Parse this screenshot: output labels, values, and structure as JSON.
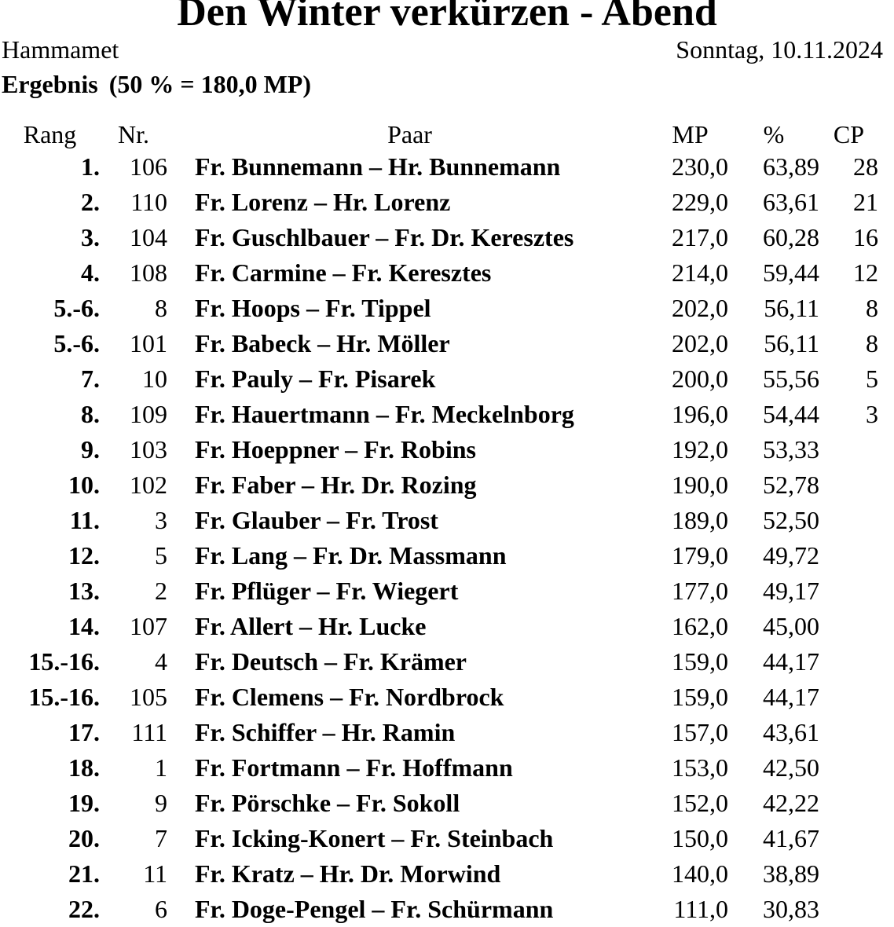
{
  "page": {
    "title": "Den Winter verkürzen - Abend",
    "location": "Hammamet",
    "date": "Sonntag, 10.11.2024",
    "result_label": "Ergebnis",
    "result_detail": "(50 % = 180,0 MP)"
  },
  "colors": {
    "text": "#000000",
    "background": "#ffffff"
  },
  "table": {
    "columns": {
      "rang": "Rang",
      "nr": "Nr.",
      "paar": "Paar",
      "mp": "MP",
      "pct": "%",
      "cp": "CP"
    },
    "rows": [
      {
        "rang": "1.",
        "nr": "106",
        "paar": "Fr. Bunnemann – Hr. Bunnemann",
        "mp": "230,0",
        "pct": "63,89",
        "cp": "28"
      },
      {
        "rang": "2.",
        "nr": "110",
        "paar": "Fr. Lorenz – Hr. Lorenz",
        "mp": "229,0",
        "pct": "63,61",
        "cp": "21"
      },
      {
        "rang": "3.",
        "nr": "104",
        "paar": "Fr. Guschlbauer – Fr. Dr. Keresztes",
        "mp": "217,0",
        "pct": "60,28",
        "cp": "16"
      },
      {
        "rang": "4.",
        "nr": "108",
        "paar": "Fr. Carmine – Fr. Keresztes",
        "mp": "214,0",
        "pct": "59,44",
        "cp": "12"
      },
      {
        "rang": "5.-6.",
        "nr": "8",
        "paar": "Fr. Hoops – Fr. Tippel",
        "mp": "202,0",
        "pct": "56,11",
        "cp": "8"
      },
      {
        "rang": "5.-6.",
        "nr": "101",
        "paar": "Fr. Babeck – Hr. Möller",
        "mp": "202,0",
        "pct": "56,11",
        "cp": "8"
      },
      {
        "rang": "7.",
        "nr": "10",
        "paar": "Fr. Pauly – Fr. Pisarek",
        "mp": "200,0",
        "pct": "55,56",
        "cp": "5"
      },
      {
        "rang": "8.",
        "nr": "109",
        "paar": "Fr. Hauertmann – Fr. Meckelnborg",
        "mp": "196,0",
        "pct": "54,44",
        "cp": "3"
      },
      {
        "rang": "9.",
        "nr": "103",
        "paar": "Fr. Hoeppner – Fr. Robins",
        "mp": "192,0",
        "pct": "53,33",
        "cp": ""
      },
      {
        "rang": "10.",
        "nr": "102",
        "paar": "Fr. Faber – Hr. Dr. Rozing",
        "mp": "190,0",
        "pct": "52,78",
        "cp": ""
      },
      {
        "rang": "11.",
        "nr": "3",
        "paar": "Fr. Glauber – Fr. Trost",
        "mp": "189,0",
        "pct": "52,50",
        "cp": ""
      },
      {
        "rang": "12.",
        "nr": "5",
        "paar": "Fr. Lang – Fr. Dr. Massmann",
        "mp": "179,0",
        "pct": "49,72",
        "cp": ""
      },
      {
        "rang": "13.",
        "nr": "2",
        "paar": "Fr. Pflüger – Fr. Wiegert",
        "mp": "177,0",
        "pct": "49,17",
        "cp": ""
      },
      {
        "rang": "14.",
        "nr": "107",
        "paar": "Fr. Allert – Hr. Lucke",
        "mp": "162,0",
        "pct": "45,00",
        "cp": ""
      },
      {
        "rang": "15.-16.",
        "nr": "4",
        "paar": "Fr. Deutsch – Fr. Krämer",
        "mp": "159,0",
        "pct": "44,17",
        "cp": ""
      },
      {
        "rang": "15.-16.",
        "nr": "105",
        "paar": "Fr. Clemens – Fr. Nordbrock",
        "mp": "159,0",
        "pct": "44,17",
        "cp": ""
      },
      {
        "rang": "17.",
        "nr": "111",
        "paar": "Fr. Schiffer – Hr. Ramin",
        "mp": "157,0",
        "pct": "43,61",
        "cp": ""
      },
      {
        "rang": "18.",
        "nr": "1",
        "paar": "Fr. Fortmann – Fr. Hoffmann",
        "mp": "153,0",
        "pct": "42,50",
        "cp": ""
      },
      {
        "rang": "19.",
        "nr": "9",
        "paar": "Fr. Pörschke – Fr. Sokoll",
        "mp": "152,0",
        "pct": "42,22",
        "cp": ""
      },
      {
        "rang": "20.",
        "nr": "7",
        "paar": "Fr. Icking-Konert – Fr. Steinbach",
        "mp": "150,0",
        "pct": "41,67",
        "cp": ""
      },
      {
        "rang": "21.",
        "nr": "11",
        "paar": "Fr. Kratz – Hr. Dr. Morwind",
        "mp": "140,0",
        "pct": "38,89",
        "cp": ""
      },
      {
        "rang": "22.",
        "nr": "6",
        "paar": "Fr. Doge-Pengel – Fr. Schürmann",
        "mp": "111,0",
        "pct": "30,83",
        "cp": ""
      }
    ]
  }
}
